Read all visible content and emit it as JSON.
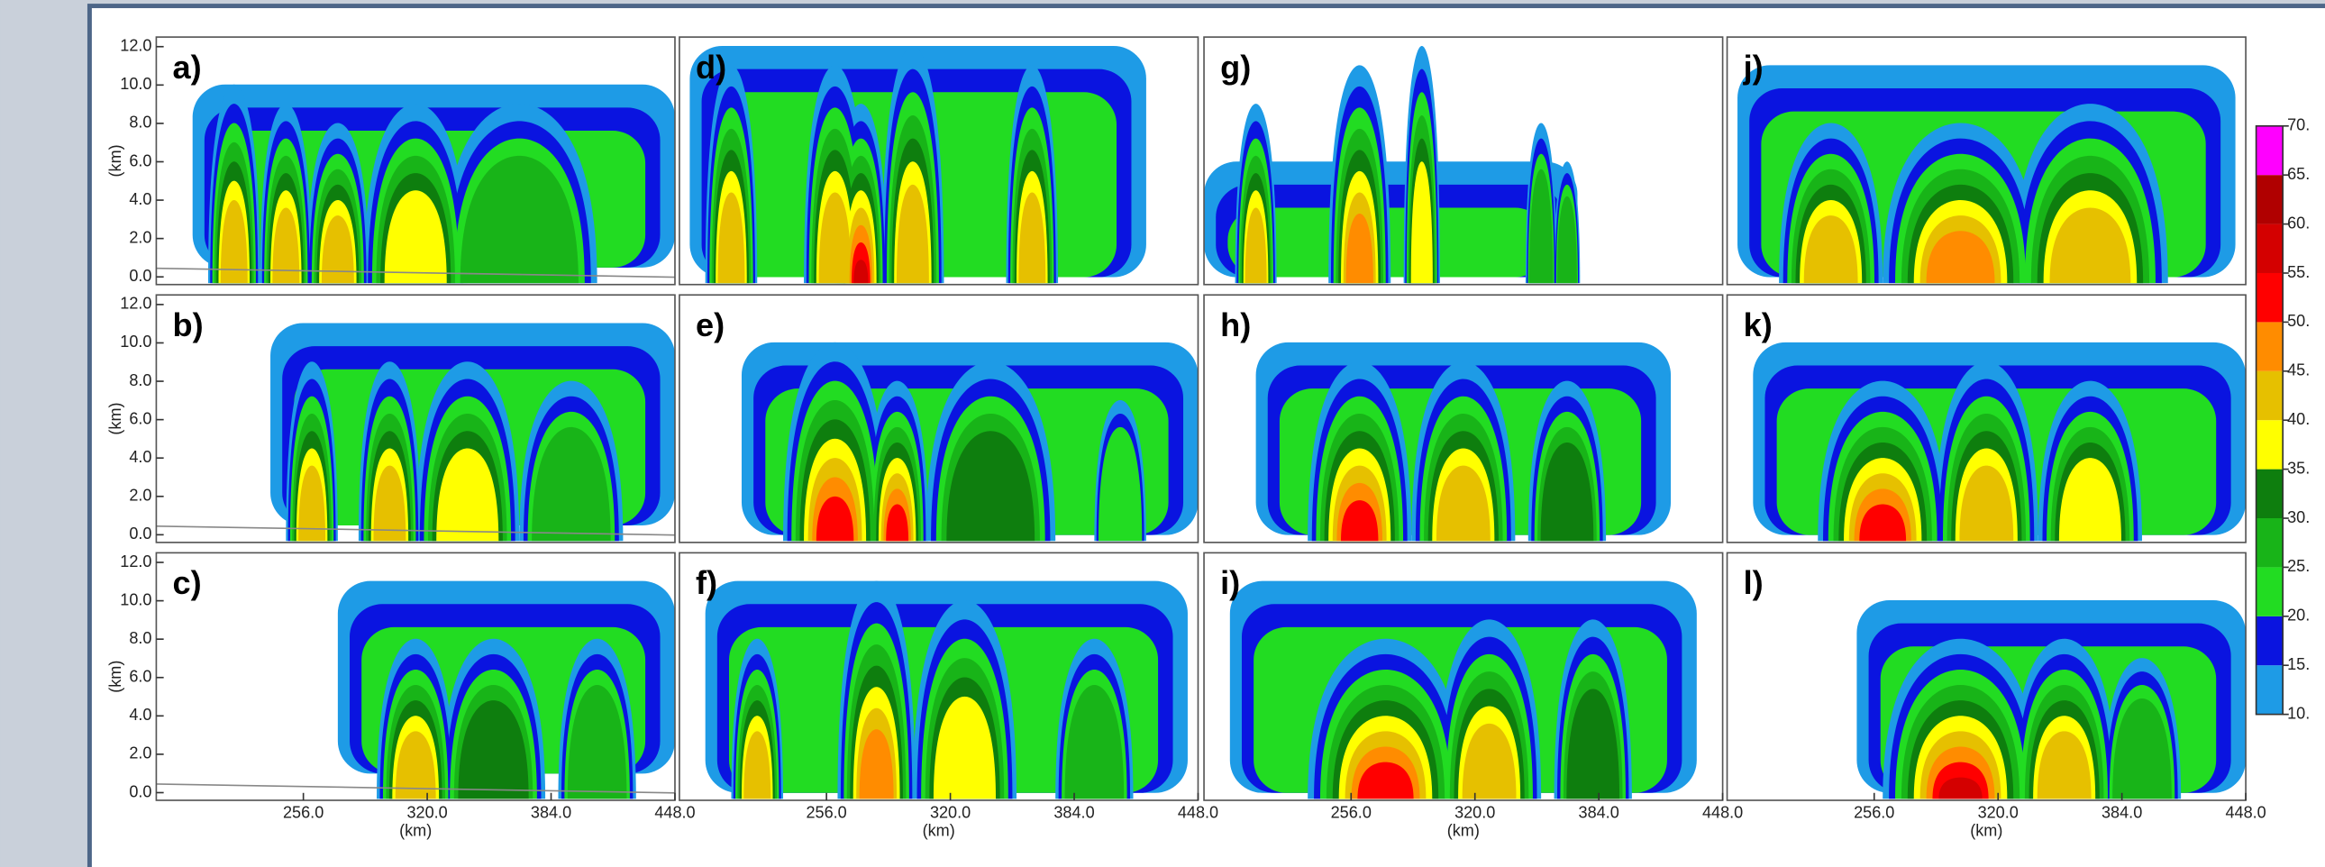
{
  "chart_data": [
    {
      "type": "contour",
      "title": "a)",
      "ylabel": "(km)",
      "ylim": [
        -0.4,
        12.5
      ],
      "yticks": [
        {
          "value": 0,
          "label": "0.0"
        },
        {
          "value": 2,
          "label": "2.0"
        },
        {
          "value": 4,
          "label": "4.0"
        },
        {
          "value": 6,
          "label": "6.0"
        },
        {
          "value": 8,
          "label": "8.0"
        },
        {
          "value": 10,
          "label": "10.0"
        },
        {
          "value": 12,
          "label": "12.0"
        }
      ]
    },
    {
      "type": "contour",
      "title": "d)"
    },
    {
      "type": "contour",
      "title": "g)"
    },
    {
      "type": "contour",
      "title": "j)"
    },
    {
      "type": "contour",
      "title": "b)",
      "ylabel": "(km)",
      "ylim": [
        -0.4,
        12.5
      ],
      "yticks": [
        {
          "value": 0,
          "label": "0.0"
        },
        {
          "value": 2,
          "label": "2.0"
        },
        {
          "value": 4,
          "label": "4.0"
        },
        {
          "value": 6,
          "label": "6.0"
        },
        {
          "value": 8,
          "label": "8.0"
        },
        {
          "value": 10,
          "label": "10.0"
        },
        {
          "value": 12,
          "label": "12.0"
        }
      ]
    },
    {
      "type": "contour",
      "title": "e)"
    },
    {
      "type": "contour",
      "title": "h)"
    },
    {
      "type": "contour",
      "title": "k)"
    },
    {
      "type": "contour",
      "title": "c)",
      "ylabel": "(km)",
      "ylim": [
        -0.4,
        12.5
      ],
      "yticks": [
        {
          "value": 0,
          "label": "0.0"
        },
        {
          "value": 2,
          "label": "2.0"
        },
        {
          "value": 4,
          "label": "4.0"
        },
        {
          "value": 6,
          "label": "6.0"
        },
        {
          "value": 8,
          "label": "8.0"
        },
        {
          "value": 10,
          "label": "10.0"
        },
        {
          "value": 12,
          "label": "12.0"
        }
      ],
      "xlabel": "(km)",
      "xlim": [
        180,
        448
      ],
      "xticks": [
        {
          "value": 256,
          "label": "256.0"
        },
        {
          "value": 320,
          "label": "320.0"
        },
        {
          "value": 384,
          "label": "384.0"
        },
        {
          "value": 448,
          "label": "448.0"
        }
      ]
    },
    {
      "type": "contour",
      "title": "f)",
      "xlabel": "(km)",
      "xlim": [
        180,
        448
      ],
      "xticks": [
        {
          "value": 256,
          "label": "256.0"
        },
        {
          "value": 320,
          "label": "320.0"
        },
        {
          "value": 384,
          "label": "384.0"
        },
        {
          "value": 448,
          "label": "448.0"
        }
      ]
    },
    {
      "type": "contour",
      "title": "i)",
      "xlabel": "(km)",
      "xlim": [
        180,
        448
      ],
      "xticks": [
        {
          "value": 256,
          "label": "256.0"
        },
        {
          "value": 320,
          "label": "320.0"
        },
        {
          "value": 384,
          "label": "384.0"
        },
        {
          "value": 448,
          "label": "448.0"
        }
      ]
    },
    {
      "type": "contour",
      "title": "l)",
      "xlabel": "(km)",
      "xlim": [
        180,
        448
      ],
      "xticks": [
        {
          "value": 256,
          "label": "256.0"
        },
        {
          "value": 320,
          "label": "320.0"
        },
        {
          "value": 384,
          "label": "384.0"
        },
        {
          "value": 448,
          "label": "448.0"
        }
      ]
    },
    {
      "type": "colorbar",
      "ylim": [
        10,
        70
      ],
      "colors": [
        "#1e9be6",
        "#0a14e0",
        "#22dc22",
        "#18b418",
        "#0e7e0e",
        "#ffff00",
        "#e6c000",
        "#ff8c00",
        "#ff0000",
        "#d40000",
        "#b00000",
        "#ff00ff"
      ],
      "yticks": [
        {
          "value": 10,
          "label": "10."
        },
        {
          "value": 15,
          "label": "15."
        },
        {
          "value": 20,
          "label": "20."
        },
        {
          "value": 25,
          "label": "25."
        },
        {
          "value": 30,
          "label": "30."
        },
        {
          "value": 35,
          "label": "35."
        },
        {
          "value": 40,
          "label": "40."
        },
        {
          "value": 45,
          "label": "45."
        },
        {
          "value": 50,
          "label": "50."
        },
        {
          "value": 55,
          "label": "55."
        },
        {
          "value": 60,
          "label": "60."
        },
        {
          "value": 65,
          "label": "65."
        },
        {
          "value": 70,
          "label": "70."
        }
      ]
    }
  ]
}
